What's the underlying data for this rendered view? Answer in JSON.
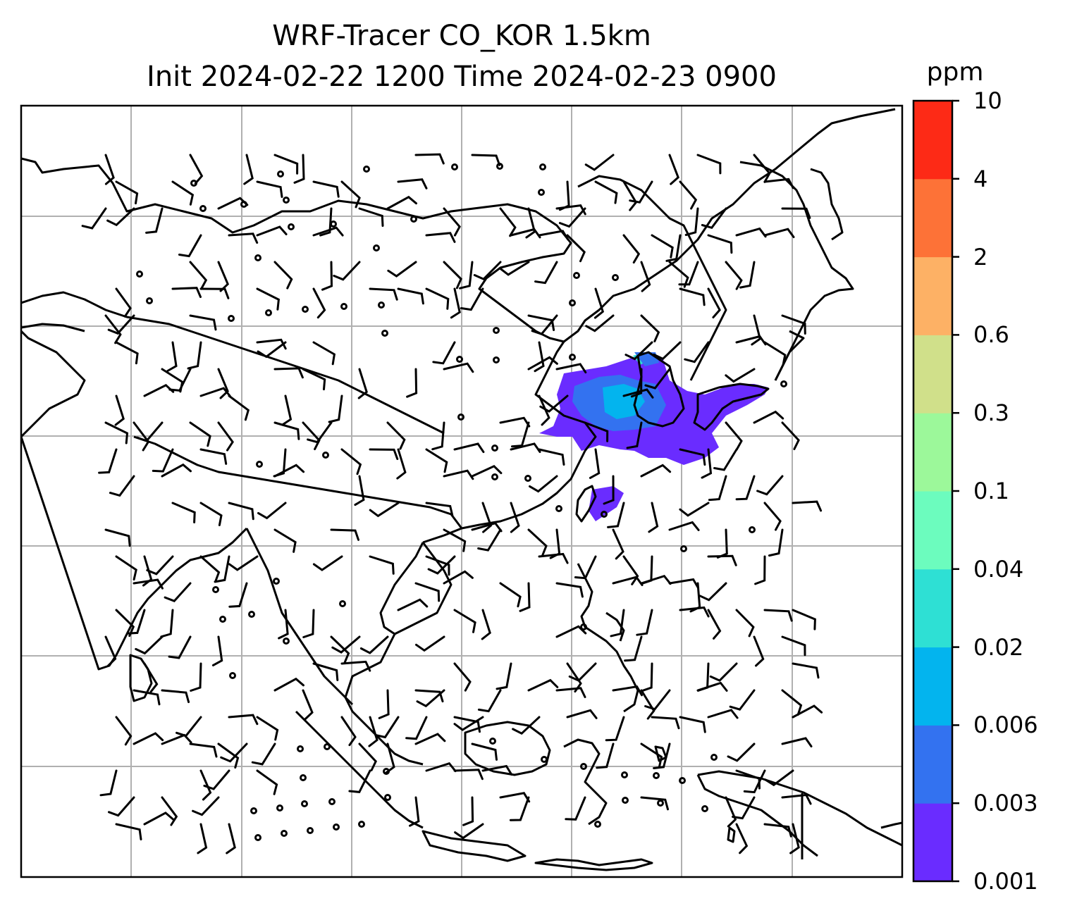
{
  "title": {
    "line1": "WRF-Tracer CO_KOR 1.5km",
    "line2": "Init 2024-02-22 1200 Time 2024-02-23 0900"
  },
  "colorbar": {
    "unit": "ppm",
    "levels": [
      "0.001",
      "0.003",
      "0.006",
      "0.02",
      "0.04",
      "0.1",
      "0.3",
      "0.6",
      "2",
      "4",
      "10"
    ],
    "colors": [
      "#6a2cff",
      "#3372f0",
      "#03b4ee",
      "#2ee0d4",
      "#6cfcbe",
      "#9cf89a",
      "#d0e08a",
      "#fdb165",
      "#fd7237",
      "#fd2a16"
    ]
  },
  "map": {
    "gridlines": true,
    "grid_color": "#b0b0b0",
    "coastline_color": "#000000",
    "tracer_region": "Korea / Yellow Sea / Japan plume",
    "wind_barbs": true
  }
}
